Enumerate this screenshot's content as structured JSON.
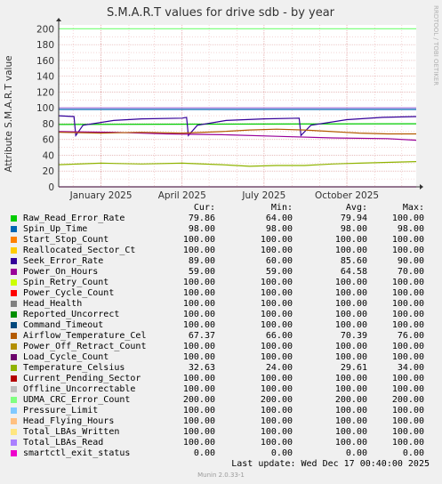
{
  "chart_data": {
    "type": "line",
    "title": "S.M.A.R.T values for drive sdb - by year",
    "ylabel": "Attribute S.M.A.R.T value",
    "ylim": [
      0,
      205
    ],
    "yticks": [
      0,
      20,
      40,
      60,
      80,
      100,
      120,
      140,
      160,
      180,
      200
    ],
    "xlim": [
      "2024-11-15",
      "2025-12-17"
    ],
    "xticks": [
      {
        "label": "January 2025",
        "date": "2025-01-01"
      },
      {
        "label": "April 2025",
        "date": "2025-04-01"
      },
      {
        "label": "July 2025",
        "date": "2025-07-01"
      },
      {
        "label": "October 2025",
        "date": "2025-10-01"
      }
    ],
    "grid": true,
    "legend_position": "bottom",
    "columns": [
      "Cur:",
      "Min:",
      "Avg:",
      "Max:"
    ],
    "series": [
      {
        "name": "Raw_Read_Error_Rate",
        "color": "#00cc00",
        "cur": "79.86",
        "min": "64.00",
        "avg": "79.94",
        "max": "100.00",
        "points": [
          [
            "2024-11-15",
            79
          ],
          [
            "2025-12-17",
            79.9
          ]
        ]
      },
      {
        "name": "Spin_Up_Time",
        "color": "#0066b3",
        "cur": "98.00",
        "min": "98.00",
        "avg": "98.00",
        "max": "98.00",
        "points": [
          [
            "2024-11-15",
            98
          ],
          [
            "2025-12-17",
            98
          ]
        ]
      },
      {
        "name": "Start_Stop_Count",
        "color": "#ff8000",
        "cur": "100.00",
        "min": "100.00",
        "avg": "100.00",
        "max": "100.00",
        "points": [
          [
            "2024-11-15",
            100
          ],
          [
            "2025-12-17",
            100
          ]
        ]
      },
      {
        "name": "Reallocated_Sector_Ct",
        "color": "#ffcc00",
        "cur": "100.00",
        "min": "100.00",
        "avg": "100.00",
        "max": "100.00",
        "points": [
          [
            "2024-11-15",
            100
          ],
          [
            "2025-12-17",
            100
          ]
        ]
      },
      {
        "name": "Seek_Error_Rate",
        "color": "#330099",
        "cur": "89.00",
        "min": "60.00",
        "avg": "85.60",
        "max": "90.00",
        "points": [
          [
            "2024-11-15",
            90
          ],
          [
            "2024-12-02",
            89
          ],
          [
            "2024-12-04",
            65
          ],
          [
            "2024-12-12",
            78
          ],
          [
            "2025-01-15",
            84
          ],
          [
            "2025-02-15",
            86
          ],
          [
            "2025-04-01",
            87
          ],
          [
            "2025-04-06",
            88
          ],
          [
            "2025-04-08",
            65
          ],
          [
            "2025-04-18",
            78
          ],
          [
            "2025-05-20",
            84
          ],
          [
            "2025-07-01",
            86
          ],
          [
            "2025-08-09",
            87
          ],
          [
            "2025-08-11",
            65
          ],
          [
            "2025-08-22",
            78
          ],
          [
            "2025-10-01",
            85
          ],
          [
            "2025-11-10",
            88
          ],
          [
            "2025-12-17",
            89
          ]
        ]
      },
      {
        "name": "Power_On_Hours",
        "color": "#990099",
        "cur": "59.00",
        "min": "59.00",
        "avg": "64.58",
        "max": "70.00",
        "points": [
          [
            "2024-11-15",
            70
          ],
          [
            "2025-01-15",
            69
          ],
          [
            "2025-03-15",
            67
          ],
          [
            "2025-05-15",
            66
          ],
          [
            "2025-07-15",
            64
          ],
          [
            "2025-09-15",
            62
          ],
          [
            "2025-11-15",
            61
          ],
          [
            "2025-12-17",
            59
          ]
        ]
      },
      {
        "name": "Spin_Retry_Count",
        "color": "#ccff00",
        "cur": "100.00",
        "min": "100.00",
        "avg": "100.00",
        "max": "100.00",
        "points": [
          [
            "2024-11-15",
            100
          ],
          [
            "2025-12-17",
            100
          ]
        ]
      },
      {
        "name": "Power_Cycle_Count",
        "color": "#ff0000",
        "cur": "100.00",
        "min": "100.00",
        "avg": "100.00",
        "max": "100.00",
        "points": [
          [
            "2024-11-15",
            100
          ],
          [
            "2025-12-17",
            100
          ]
        ]
      },
      {
        "name": "Head_Health",
        "color": "#808080",
        "cur": "100.00",
        "min": "100.00",
        "avg": "100.00",
        "max": "100.00",
        "points": [
          [
            "2024-11-15",
            100
          ],
          [
            "2025-12-17",
            100
          ]
        ]
      },
      {
        "name": "Reported_Uncorrect",
        "color": "#008f00",
        "cur": "100.00",
        "min": "100.00",
        "avg": "100.00",
        "max": "100.00",
        "points": [
          [
            "2024-11-15",
            100
          ],
          [
            "2025-12-17",
            100
          ]
        ]
      },
      {
        "name": "Command_Timeout",
        "color": "#00487d",
        "cur": "100.00",
        "min": "100.00",
        "avg": "100.00",
        "max": "100.00",
        "points": [
          [
            "2024-11-15",
            100
          ],
          [
            "2025-12-17",
            100
          ]
        ]
      },
      {
        "name": "Airflow_Temperature_Cel",
        "color": "#b35a00",
        "cur": "67.37",
        "min": "66.00",
        "avg": "70.39",
        "max": "76.00",
        "points": [
          [
            "2024-11-15",
            69
          ],
          [
            "2025-01-01",
            68
          ],
          [
            "2025-02-15",
            69
          ],
          [
            "2025-04-01",
            68
          ],
          [
            "2025-05-15",
            70
          ],
          [
            "2025-06-15",
            72
          ],
          [
            "2025-07-15",
            73
          ],
          [
            "2025-08-15",
            72
          ],
          [
            "2025-09-15",
            70
          ],
          [
            "2025-10-15",
            68
          ],
          [
            "2025-11-15",
            67
          ],
          [
            "2025-12-17",
            67
          ]
        ]
      },
      {
        "name": "Power_Off_Retract_Count",
        "color": "#b38f00",
        "cur": "100.00",
        "min": "100.00",
        "avg": "100.00",
        "max": "100.00",
        "points": [
          [
            "2024-11-15",
            100
          ],
          [
            "2025-12-17",
            100
          ]
        ]
      },
      {
        "name": "Load_Cycle_Count",
        "color": "#6b006b",
        "cur": "100.00",
        "min": "100.00",
        "avg": "100.00",
        "max": "100.00",
        "points": [
          [
            "2024-11-15",
            100
          ],
          [
            "2025-12-17",
            100
          ]
        ]
      },
      {
        "name": "Temperature_Celsius",
        "color": "#8fb300",
        "cur": "32.63",
        "min": "24.00",
        "avg": "29.61",
        "max": "34.00",
        "points": [
          [
            "2024-11-15",
            28
          ],
          [
            "2025-01-01",
            30
          ],
          [
            "2025-02-15",
            29
          ],
          [
            "2025-04-01",
            30
          ],
          [
            "2025-05-15",
            28
          ],
          [
            "2025-06-15",
            26
          ],
          [
            "2025-07-15",
            27
          ],
          [
            "2025-08-15",
            27
          ],
          [
            "2025-09-15",
            29
          ],
          [
            "2025-10-15",
            30
          ],
          [
            "2025-11-15",
            31
          ],
          [
            "2025-12-17",
            32
          ]
        ]
      },
      {
        "name": "Current_Pending_Sector",
        "color": "#b30000",
        "cur": "100.00",
        "min": "100.00",
        "avg": "100.00",
        "max": "100.00",
        "points": [
          [
            "2024-11-15",
            100
          ],
          [
            "2025-12-17",
            100
          ]
        ]
      },
      {
        "name": "Offline_Uncorrectable",
        "color": "#bebebe",
        "cur": "100.00",
        "min": "100.00",
        "avg": "100.00",
        "max": "100.00",
        "points": [
          [
            "2024-11-15",
            100
          ],
          [
            "2025-12-17",
            100
          ]
        ]
      },
      {
        "name": "UDMA_CRC_Error_Count",
        "color": "#80ff80",
        "cur": "200.00",
        "min": "200.00",
        "avg": "200.00",
        "max": "200.00",
        "points": [
          [
            "2024-11-15",
            200
          ],
          [
            "2025-12-17",
            200
          ]
        ]
      },
      {
        "name": "Pressure_Limit",
        "color": "#80c9ff",
        "cur": "100.00",
        "min": "100.00",
        "avg": "100.00",
        "max": "100.00",
        "points": [
          [
            "2024-11-15",
            100
          ],
          [
            "2025-12-17",
            100
          ]
        ]
      },
      {
        "name": "Head_Flying_Hours",
        "color": "#ffc080",
        "cur": "100.00",
        "min": "100.00",
        "avg": "100.00",
        "max": "100.00",
        "points": [
          [
            "2024-11-15",
            100
          ],
          [
            "2025-12-17",
            100
          ]
        ]
      },
      {
        "name": "Total_LBAs_Written",
        "color": "#ffe680",
        "cur": "100.00",
        "min": "100.00",
        "avg": "100.00",
        "max": "100.00",
        "points": [
          [
            "2024-11-15",
            100
          ],
          [
            "2025-12-17",
            100
          ]
        ]
      },
      {
        "name": "Total_LBAs_Read",
        "color": "#aa80ff",
        "cur": "100.00",
        "min": "100.00",
        "avg": "100.00",
        "max": "100.00",
        "points": [
          [
            "2024-11-15",
            100
          ],
          [
            "2025-12-17",
            100
          ]
        ]
      },
      {
        "name": "smartctl_exit_status",
        "color": "#ee00cc",
        "cur": "0.00",
        "min": "0.00",
        "avg": "0.00",
        "max": "0.00",
        "points": [
          [
            "2024-11-15",
            0
          ],
          [
            "2025-12-17",
            0
          ]
        ]
      }
    ]
  },
  "footer": {
    "last_update": "Last update:  Wed Dec 17 00:40:00 2025",
    "munin_version": "Munin 2.0.33-1",
    "watermark": "RRDTOOL / TOBI OETIKER"
  }
}
